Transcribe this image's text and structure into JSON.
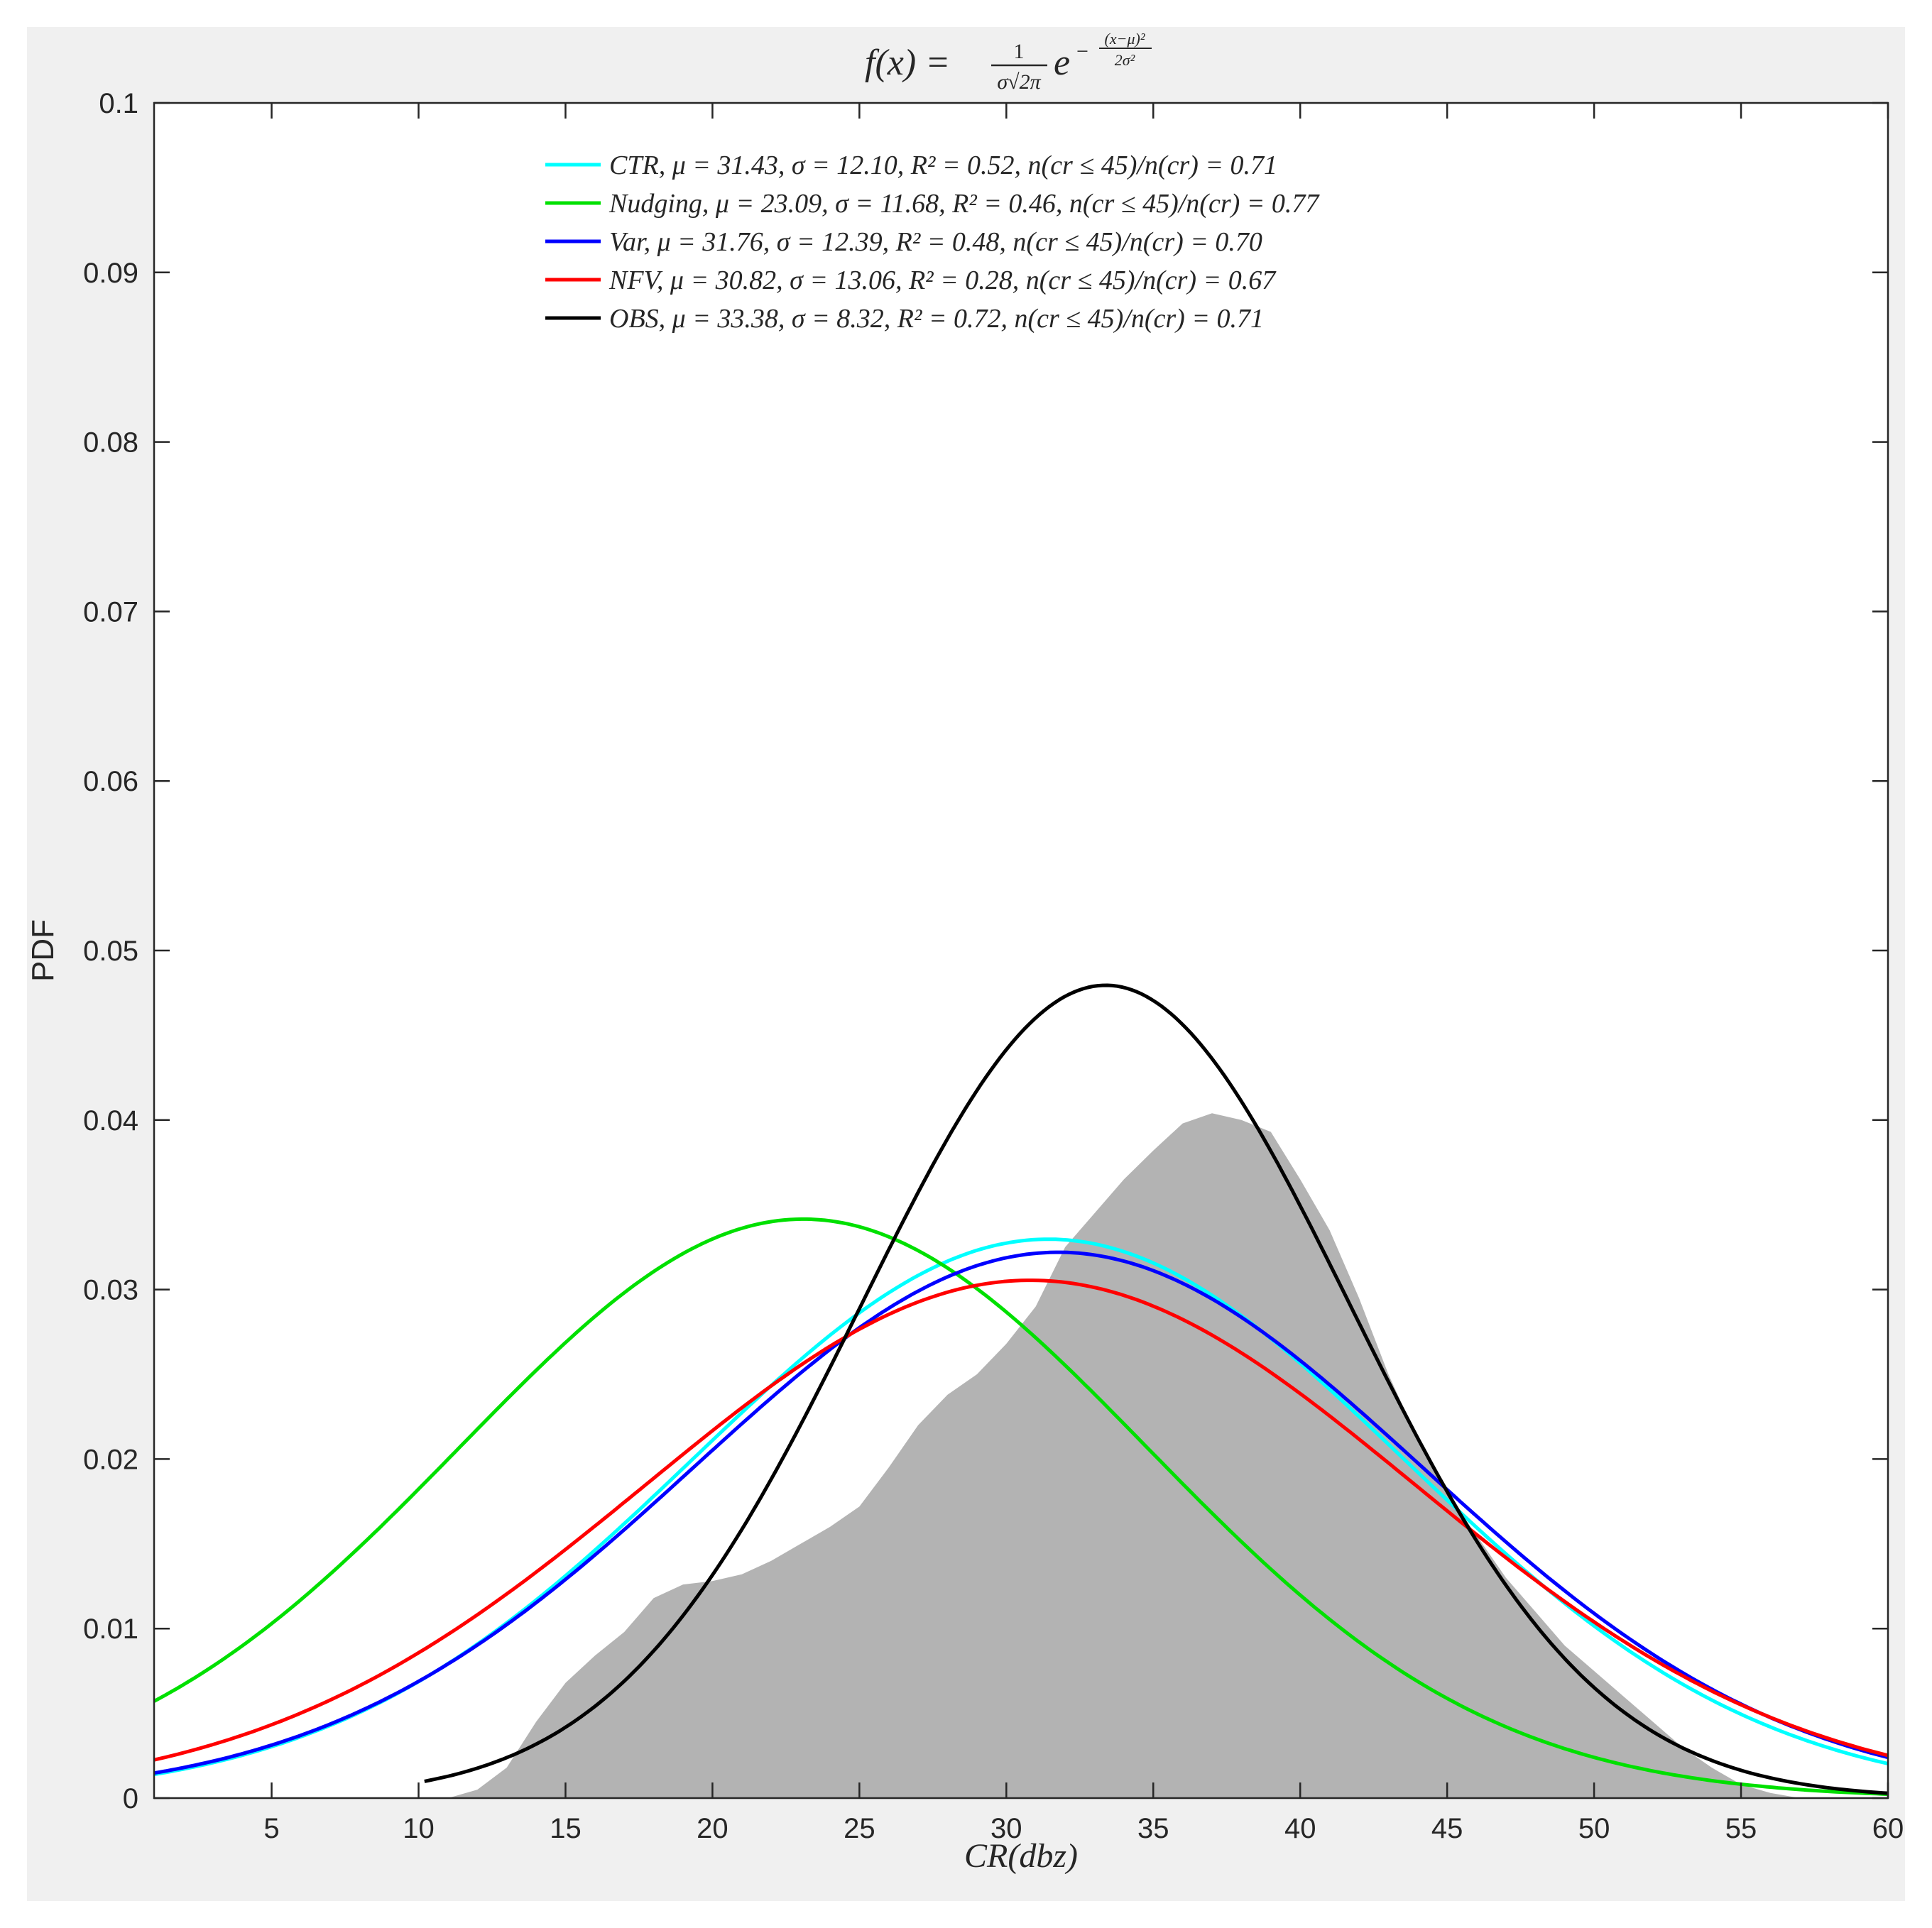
{
  "chart_data": {
    "type": "line",
    "title": "f(x) = 1/(σ√2π) e^(−(x−μ)²/2σ²)",
    "title_parts": {
      "lhs": "f(x) =",
      "frac_num": "1",
      "frac_den": "σ√2π",
      "base": "e",
      "exp_sign": "−",
      "exp_num": "(x−μ)²",
      "exp_den": "2σ²"
    },
    "xlabel": "CR(dbz)",
    "ylabel": "PDF",
    "xlim": [
      1,
      60
    ],
    "ylim": [
      0,
      0.1
    ],
    "xticks": [
      5,
      10,
      15,
      20,
      25,
      30,
      35,
      40,
      45,
      50,
      55,
      60
    ],
    "xtick_labels": [
      "5",
      "10",
      "15",
      "20",
      "25",
      "30",
      "35",
      "40",
      "45",
      "50",
      "55",
      "60"
    ],
    "yticks": [
      0,
      0.01,
      0.02,
      0.03,
      0.04,
      0.05,
      0.06,
      0.07,
      0.08,
      0.09,
      0.1
    ],
    "ytick_labels": [
      "0",
      "0.01",
      "0.02",
      "0.03",
      "0.04",
      "0.05",
      "0.06",
      "0.07",
      "0.08",
      "0.09",
      "0.1"
    ],
    "grid": false,
    "legend_position": "top-center",
    "series": [
      {
        "name": "CTR",
        "legend": "CTR, μ = 31.43, σ = 12.10, R² = 0.52, n(cr ≤ 45)/n(cr) = 0.71",
        "color": "#00ffff",
        "mu": 31.43,
        "sigma": 12.1,
        "x_range": [
          1,
          60
        ]
      },
      {
        "name": "Nudging",
        "legend": "Nudging, μ = 23.09, σ = 11.68, R² = 0.46, n(cr ≤ 45)/n(cr) = 0.77",
        "color": "#00e000",
        "mu": 23.09,
        "sigma": 11.68,
        "x_range": [
          1,
          60
        ]
      },
      {
        "name": "Var",
        "legend": "Var, μ = 31.76, σ = 12.39, R² = 0.48, n(cr ≤ 45)/n(cr) = 0.70",
        "color": "#0000ff",
        "mu": 31.76,
        "sigma": 12.39,
        "x_range": [
          1,
          60
        ]
      },
      {
        "name": "NFV",
        "legend": "NFV, μ = 30.82, σ = 13.06, R² = 0.28, n(cr ≤ 45)/n(cr) = 0.67",
        "color": "#ff0000",
        "mu": 30.82,
        "sigma": 13.06,
        "x_range": [
          1,
          60
        ]
      },
      {
        "name": "OBS",
        "legend": "OBS, μ = 33.38, σ = 8.32, R² = 0.72, n(cr ≤ 45)/n(cr) = 0.71",
        "color": "#000000",
        "mu": 33.38,
        "sigma": 8.32,
        "x_range": [
          10.2,
          60
        ]
      }
    ],
    "histogram": {
      "color": "#b3b3b3",
      "x": [
        11,
        12,
        13,
        14,
        15,
        16,
        17,
        18,
        19,
        20,
        21,
        22,
        23,
        24,
        25,
        26,
        27,
        28,
        29,
        30,
        31,
        32,
        33,
        34,
        35,
        36,
        37,
        38,
        39,
        40,
        41,
        42,
        43,
        44,
        45,
        46,
        47,
        48,
        49,
        50,
        51,
        52,
        53,
        54,
        55,
        56,
        57
      ],
      "y": [
        0.0,
        0.0005,
        0.0018,
        0.0045,
        0.0068,
        0.0084,
        0.0098,
        0.0118,
        0.0126,
        0.0128,
        0.0132,
        0.014,
        0.015,
        0.016,
        0.0172,
        0.0195,
        0.022,
        0.0238,
        0.025,
        0.0268,
        0.029,
        0.0325,
        0.0345,
        0.0365,
        0.0382,
        0.0398,
        0.0404,
        0.04,
        0.0393,
        0.0365,
        0.0335,
        0.0295,
        0.025,
        0.0212,
        0.018,
        0.0155,
        0.013,
        0.011,
        0.009,
        0.0075,
        0.006,
        0.0045,
        0.003,
        0.0018,
        0.0008,
        0.0003,
        0.0
      ]
    }
  }
}
